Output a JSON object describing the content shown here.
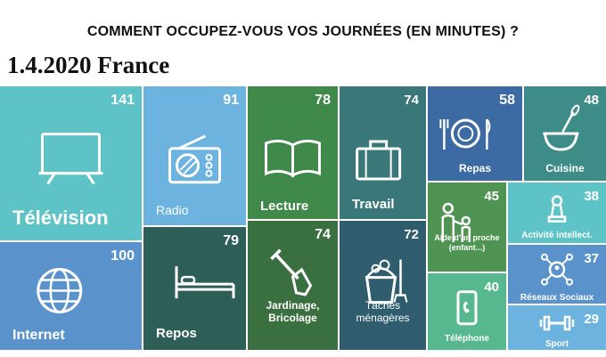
{
  "header": {
    "title": "COMMENT OCCUPEZ-VOUS VOS JOURNÉES (EN MINUTES) ?",
    "subtitle": "1.4.2020 France"
  },
  "chart_data": {
    "type": "treemap",
    "unit": "minutes",
    "items": [
      {
        "label": "Télévision",
        "value": 141,
        "color": "#5ec3c6",
        "icon": "television-icon"
      },
      {
        "label": "Internet",
        "value": 100,
        "color": "#5a93cc",
        "icon": "globe-icon"
      },
      {
        "label": "Radio",
        "value": 91,
        "color": "#6cb3df",
        "icon": "radio-icon"
      },
      {
        "label": "Repos",
        "value": 79,
        "color": "#2d5e58",
        "icon": "bed-icon"
      },
      {
        "label": "Lecture",
        "value": 78,
        "color": "#3f8a4a",
        "icon": "book-icon"
      },
      {
        "label": "Jardinage, Bricolage",
        "value": 74,
        "color": "#3a6f3f",
        "icon": "shovel-icon"
      },
      {
        "label": "Travail",
        "value": 74,
        "color": "#3a7778",
        "icon": "briefcase-icon"
      },
      {
        "label": "Tâches ménagères",
        "value": 72,
        "color": "#2f5d6e",
        "icon": "cleaning-bucket-icon"
      },
      {
        "label": "Repas",
        "value": 58,
        "color": "#3c6aa3",
        "icon": "plate-cutlery-icon"
      },
      {
        "label": "Cuisine",
        "value": 48,
        "color": "#3e8c88",
        "icon": "mixing-bowl-icon"
      },
      {
        "label": "Aide d'un proche (enfant...)",
        "value": 45,
        "color": "#4f9452",
        "icon": "parent-child-icon"
      },
      {
        "label": "Activité intellect.",
        "value": 38,
        "color": "#5ec3c6",
        "icon": "chess-pawn-icon"
      },
      {
        "label": "Téléphone",
        "value": 40,
        "color": "#57b88f",
        "icon": "phone-icon"
      },
      {
        "label": "Réseaux Sociaux",
        "value": 37,
        "color": "#5a93cc",
        "icon": "social-network-icon"
      },
      {
        "label": "Sport",
        "value": 29,
        "color": "#6cb3df",
        "icon": "dumbbell-icon"
      }
    ]
  }
}
